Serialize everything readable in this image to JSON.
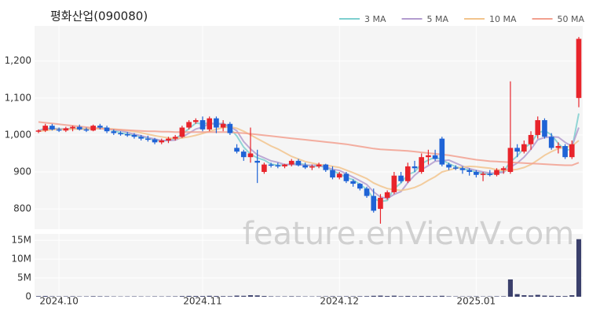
{
  "chart_data": {
    "type": "candlestick",
    "title": "평화산업(090080)",
    "watermark": "feature.enViewV.com",
    "categories": [
      null,
      null,
      null,
      "2024.10",
      null,
      null,
      null,
      null,
      null,
      null,
      null,
      null,
      null,
      null,
      null,
      null,
      null,
      null,
      null,
      null,
      null,
      null,
      null,
      null,
      "2024.11",
      null,
      null,
      null,
      null,
      null,
      null,
      null,
      null,
      null,
      null,
      null,
      null,
      null,
      null,
      null,
      null,
      null,
      null,
      null,
      "2024.12",
      null,
      null,
      null,
      null,
      null,
      null,
      null,
      null,
      null,
      null,
      null,
      null,
      null,
      null,
      null,
      null,
      null,
      null,
      null,
      "2025.01",
      null,
      null,
      null,
      null,
      null,
      null,
      null,
      null,
      null,
      null,
      null,
      null,
      null,
      null,
      null
    ],
    "up_color": "#e8242b",
    "down_color": "#1f63d6",
    "open": [
      1010,
      1012,
      1025,
      1015,
      1012,
      1018,
      1022,
      1015,
      1012,
      1025,
      1020,
      1010,
      1005,
      1002,
      1000,
      995,
      990,
      988,
      980,
      985,
      990,
      995,
      1020,
      1035,
      1040,
      1015,
      1045,
      1020,
      1030,
      965,
      955,
      940,
      930,
      900,
      920,
      918,
      915,
      920,
      930,
      918,
      912,
      915,
      920,
      905,
      885,
      895,
      875,
      868,
      855,
      835,
      800,
      830,
      845,
      890,
      875,
      915,
      900,
      940,
      945,
      990,
      920,
      912,
      910,
      905,
      900,
      892,
      895,
      892,
      905,
      900,
      965,
      955,
      975,
      1000,
      1040,
      995,
      965,
      970,
      940,
      1100
    ],
    "high": [
      1015,
      1030,
      1030,
      1020,
      1022,
      1025,
      1028,
      1020,
      1028,
      1030,
      1025,
      1015,
      1010,
      1008,
      1005,
      1000,
      998,
      992,
      990,
      995,
      1000,
      1025,
      1040,
      1045,
      1050,
      1050,
      1050,
      1040,
      1035,
      975,
      960,
      1020,
      960,
      925,
      925,
      925,
      922,
      935,
      935,
      925,
      920,
      925,
      922,
      915,
      900,
      900,
      880,
      870,
      860,
      855,
      840,
      850,
      900,
      900,
      925,
      930,
      950,
      960,
      960,
      995,
      925,
      918,
      915,
      910,
      905,
      900,
      905,
      910,
      915,
      1145,
      975,
      985,
      1010,
      1050,
      1045,
      1005,
      980,
      975,
      985,
      1265
    ],
    "low": [
      1005,
      1008,
      1012,
      1008,
      1008,
      1010,
      1012,
      1008,
      1010,
      1015,
      1005,
      1000,
      998,
      995,
      990,
      985,
      982,
      975,
      975,
      978,
      985,
      992,
      1015,
      1030,
      1010,
      1010,
      1005,
      1010,
      1000,
      950,
      930,
      925,
      870,
      895,
      912,
      910,
      910,
      915,
      915,
      908,
      905,
      910,
      900,
      880,
      880,
      870,
      860,
      850,
      830,
      790,
      760,
      825,
      840,
      870,
      870,
      900,
      895,
      920,
      930,
      915,
      905,
      905,
      895,
      890,
      885,
      875,
      888,
      888,
      895,
      895,
      940,
      950,
      960,
      990,
      990,
      960,
      950,
      935,
      935,
      1075
    ],
    "close": [
      1012,
      1025,
      1015,
      1012,
      1018,
      1022,
      1015,
      1012,
      1025,
      1020,
      1010,
      1005,
      1002,
      1000,
      995,
      990,
      988,
      980,
      985,
      990,
      995,
      1020,
      1035,
      1040,
      1015,
      1045,
      1020,
      1030,
      1005,
      955,
      940,
      950,
      925,
      920,
      918,
      915,
      920,
      930,
      918,
      912,
      915,
      920,
      905,
      885,
      895,
      875,
      868,
      855,
      835,
      795,
      830,
      845,
      890,
      875,
      915,
      910,
      940,
      945,
      935,
      920,
      912,
      910,
      905,
      900,
      892,
      895,
      892,
      905,
      910,
      965,
      955,
      975,
      1000,
      1040,
      995,
      965,
      970,
      940,
      975,
      1260
    ],
    "series": [
      {
        "name": "3 MA",
        "color": "#7ecfcf",
        "values": [
          1012,
          1018,
          1017,
          1017,
          1015,
          1017,
          1018,
          1016,
          1017,
          1019,
          1018,
          1012,
          1006,
          1002,
          999,
          995,
          991,
          986,
          984,
          985,
          990,
          1002,
          1017,
          1032,
          1030,
          1033,
          1027,
          1032,
          1018,
          997,
          967,
          948,
          938,
          932,
          921,
          918,
          918,
          922,
          923,
          920,
          915,
          916,
          913,
          903,
          895,
          885,
          879,
          866,
          853,
          828,
          820,
          823,
          855,
          870,
          893,
          900,
          922,
          932,
          940,
          933,
          922,
          914,
          909,
          905,
          899,
          896,
          893,
          897,
          902,
          927,
          943,
          965,
          977,
          1005,
          1012,
          1000,
          977,
          958,
          962,
          1058
        ]
      },
      {
        "name": "5 MA",
        "color": "#b39ccf",
        "values": [
          1012,
          1015,
          1017,
          1016,
          1016,
          1018,
          1016,
          1016,
          1018,
          1019,
          1016,
          1014,
          1012,
          1007,
          1002,
          998,
          993,
          989,
          985,
          985,
          986,
          994,
          1005,
          1016,
          1021,
          1031,
          1031,
          1030,
          1023,
          1011,
          982,
          962,
          946,
          938,
          930,
          926,
          920,
          920,
          920,
          918,
          918,
          918,
          914,
          907,
          904,
          895,
          886,
          876,
          866,
          846,
          832,
          828,
          839,
          847,
          871,
          891,
          906,
          917,
          929,
          930,
          932,
          924,
          916,
          909,
          904,
          900,
          897,
          897,
          899,
          913,
          924,
          940,
          961,
          987,
          993,
          995,
          994,
          980,
          969,
          1020
        ]
      },
      {
        "name": "10 MA",
        "color": "#f2c48d",
        "values": [
          1010,
          1012,
          1014,
          1015,
          1015,
          1016,
          1016,
          1016,
          1017,
          1017,
          1017,
          1016,
          1014,
          1012,
          1009,
          1006,
          1002,
          998,
          995,
          992,
          990,
          992,
          995,
          999,
          1004,
          1010,
          1015,
          1020,
          1022,
          1018,
          1010,
          1000,
          990,
          980,
          970,
          962,
          952,
          942,
          935,
          928,
          924,
          920,
          918,
          915,
          912,
          905,
          898,
          890,
          882,
          870,
          862,
          855,
          852,
          850,
          853,
          858,
          866,
          877,
          887,
          900,
          905,
          910,
          913,
          915,
          914,
          912,
          910,
          906,
          904,
          905,
          907,
          912,
          920,
          932,
          945,
          955,
          963,
          967,
          970,
          985
        ]
      },
      {
        "name": "50 MA",
        "color": "#f2a08f",
        "values": [
          1035,
          1033,
          1031,
          1029,
          1027,
          1025,
          1023,
          1021,
          1019,
          1017,
          1016,
          1015,
          1014,
          1013,
          1012,
          1011,
          1010,
          1010,
          1009,
          1009,
          1008,
          1008,
          1008,
          1008,
          1008,
          1008,
          1008,
          1008,
          1008,
          1006,
          1005,
          1003,
          1001,
          999,
          997,
          995,
          993,
          991,
          989,
          987,
          985,
          983,
          981,
          979,
          977,
          975,
          972,
          969,
          966,
          963,
          961,
          960,
          959,
          958,
          957,
          955,
          953,
          951,
          949,
          947,
          945,
          942,
          939,
          936,
          933,
          931,
          929,
          928,
          927,
          926,
          925,
          924,
          923,
          922,
          921,
          920,
          919,
          918,
          918,
          925
        ]
      }
    ],
    "ylim": [
      745,
      1295
    ],
    "yticks": [
      800,
      900,
      {
        "value": 1000,
        "label": "1,000"
      },
      {
        "value": 1100,
        "label": "1,100"
      },
      {
        "value": 1200,
        "label": "1,200"
      }
    ],
    "grid": true,
    "legend": "top-right",
    "volume": {
      "color": "#3a3f6b",
      "values": [
        150000,
        200000,
        120000,
        100000,
        110000,
        130000,
        90000,
        100000,
        140000,
        120000,
        110000,
        90000,
        80000,
        90000,
        100000,
        90000,
        80000,
        100000,
        90000,
        100000,
        110000,
        180000,
        220000,
        200000,
        190000,
        250000,
        200000,
        160000,
        150000,
        300000,
        250000,
        400000,
        350000,
        200000,
        120000,
        100000,
        100000,
        130000,
        110000,
        90000,
        90000,
        100000,
        110000,
        140000,
        120000,
        130000,
        120000,
        140000,
        160000,
        250000,
        300000,
        200000,
        280000,
        150000,
        220000,
        150000,
        200000,
        180000,
        160000,
        250000,
        120000,
        100000,
        90000,
        100000,
        110000,
        90000,
        100000,
        120000,
        130000,
        4600000,
        700000,
        400000,
        350000,
        500000,
        300000,
        250000,
        200000,
        180000,
        400000,
        15300000
      ],
      "ylim": [
        0,
        16700000
      ],
      "yticks": [
        0,
        {
          "value": 5000000,
          "label": "5M"
        },
        {
          "value": 10000000,
          "label": "10M"
        },
        {
          "value": 15000000,
          "label": "15M"
        }
      ]
    }
  }
}
